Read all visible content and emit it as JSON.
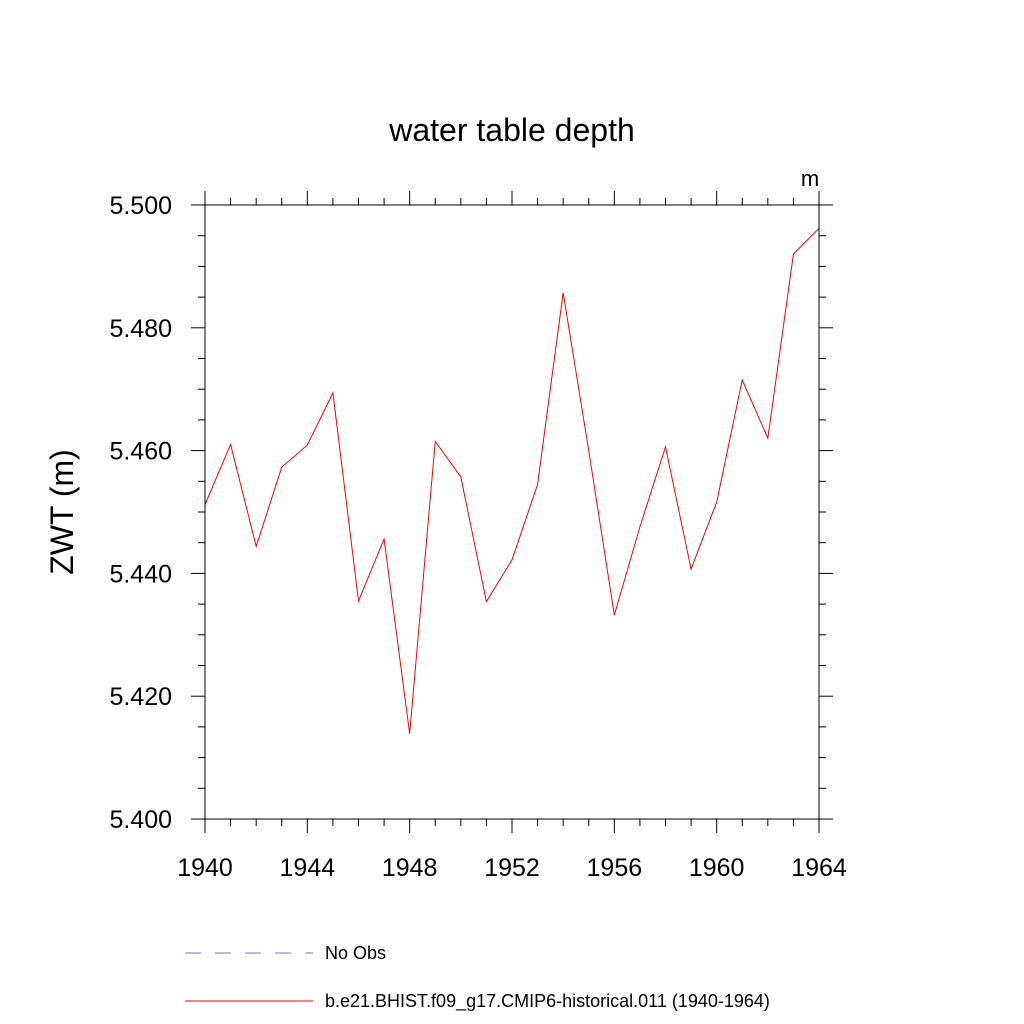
{
  "chart_data": {
    "type": "line",
    "title": "water table depth",
    "units_label": "m",
    "ylabel": "ZWT  (m)",
    "xlabel": "",
    "xlim": [
      1940,
      1964
    ],
    "ylim": [
      5.4,
      5.5
    ],
    "x_ticks": [
      1940,
      1944,
      1948,
      1952,
      1956,
      1960,
      1964
    ],
    "x_tick_labels": [
      "1940",
      "1944",
      "1948",
      "1952",
      "1956",
      "1960",
      "1964"
    ],
    "x_minor_step": 1,
    "y_ticks": [
      5.4,
      5.42,
      5.44,
      5.46,
      5.48,
      5.5
    ],
    "y_tick_labels": [
      "5.400",
      "5.420",
      "5.440",
      "5.460",
      "5.480",
      "5.500"
    ],
    "y_minor_step": 0.005,
    "grid": false,
    "legend_position": "bottom",
    "series": [
      {
        "name": "No Obs",
        "color": "#7777cc",
        "dash": "dashed",
        "x": [],
        "values": []
      },
      {
        "name": "b.e21.BHIST.f09_g17.CMIP6-historical.011 (1940-1964)",
        "color": "#ff0000",
        "dash": "solid",
        "x": [
          1940,
          1941,
          1942,
          1943,
          1944,
          1945,
          1946,
          1947,
          1948,
          1949,
          1950,
          1951,
          1952,
          1953,
          1954,
          1955,
          1956,
          1957,
          1958,
          1959,
          1960,
          1961,
          1962,
          1963,
          1964
        ],
        "values": [
          5.4512,
          5.461,
          5.4444,
          5.4573,
          5.4609,
          5.4694,
          5.4355,
          5.4456,
          5.4139,
          5.4615,
          5.4557,
          5.4354,
          5.4422,
          5.4545,
          5.4857,
          5.46,
          5.4332,
          5.4476,
          5.4606,
          5.4407,
          5.4516,
          5.4715,
          5.462,
          5.492,
          5.4962
        ]
      }
    ]
  }
}
